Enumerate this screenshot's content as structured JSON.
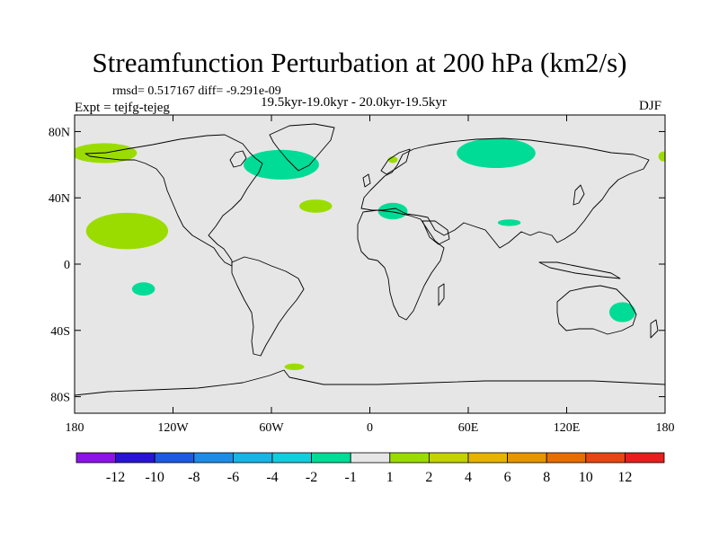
{
  "figure": {
    "title": "Streamfunction Perturbation at 200 hPa (km2/s)",
    "stats_line": "rmsd= 0.517167 diff= -9.291e-09",
    "period": "19.5kyr-19.0kyr - 20.0kyr-19.5kyr",
    "experiment": "Expt = tejfg-tejeg",
    "season": "DJF"
  },
  "colors": {
    "ocean_background": "#e6e6e6",
    "coastline": "#000000",
    "neg_1_2": "#00dc96",
    "pos_1_2": "#9bdc00"
  },
  "chart_data": {
    "type": "filled-contour-map",
    "title": "Streamfunction Perturbation at 200 hPa (km2/s)",
    "lon_range": [
      -180,
      180
    ],
    "lat_range": [
      -90,
      90
    ],
    "x_ticks": [
      {
        "lon": -180,
        "label": "180"
      },
      {
        "lon": -120,
        "label": "120W"
      },
      {
        "lon": -60,
        "label": "60W"
      },
      {
        "lon": 0,
        "label": "0"
      },
      {
        "lon": 60,
        "label": "60E"
      },
      {
        "lon": 120,
        "label": "120E"
      },
      {
        "lon": 180,
        "label": "180"
      }
    ],
    "y_ticks": [
      {
        "lat": 80,
        "label": "80N"
      },
      {
        "lat": 40,
        "label": "40N"
      },
      {
        "lat": 0,
        "label": "0"
      },
      {
        "lat": -40,
        "label": "40S"
      },
      {
        "lat": -80,
        "label": "80S"
      }
    ],
    "colorbar": {
      "colors": [
        "#8c14e6",
        "#2814d2",
        "#1e5ae1",
        "#1e8ce6",
        "#19b4e6",
        "#14cddc",
        "#00dc96",
        "#e6e6e6",
        "#9bdc00",
        "#c3d200",
        "#e6b400",
        "#e69600",
        "#e66e00",
        "#e64614",
        "#e61e1e"
      ],
      "levels": [
        "-12",
        "-10",
        "-8",
        "-6",
        "-4",
        "-2",
        "-1",
        "1",
        "2",
        "4",
        "6",
        "8",
        "10",
        "12"
      ]
    },
    "anomaly_regions": [
      {
        "name": "north-pacific-positive",
        "sign": "positive",
        "range": "1 to 2",
        "lon": -162,
        "lat": 67,
        "rx": 20,
        "ry": 6
      },
      {
        "name": "subtropical-pacific-positive",
        "sign": "positive",
        "range": "1 to 2",
        "lon": -148,
        "lat": 20,
        "rx": 25,
        "ry": 11
      },
      {
        "name": "south-pacific-negative",
        "sign": "negative",
        "range": "-2 to -1",
        "lon": -138,
        "lat": -15,
        "rx": 7,
        "ry": 4
      },
      {
        "name": "north-atlantic-negative",
        "sign": "negative",
        "range": "-2 to -1",
        "lon": -54,
        "lat": 60,
        "rx": 23,
        "ry": 9
      },
      {
        "name": "mid-atlantic-positive",
        "sign": "positive",
        "range": "1 to 2",
        "lon": -33,
        "lat": 35,
        "rx": 10,
        "ry": 4
      },
      {
        "name": "scandinavia-positive",
        "sign": "positive",
        "range": "1 to 2",
        "lon": 14,
        "lat": 63,
        "rx": 3,
        "ry": 2
      },
      {
        "name": "mediterranean-negative",
        "sign": "negative",
        "range": "-2 to -1",
        "lon": 14,
        "lat": 32,
        "rx": 9,
        "ry": 5
      },
      {
        "name": "siberia-negative",
        "sign": "negative",
        "range": "-2 to -1",
        "lon": 77,
        "lat": 67,
        "rx": 24,
        "ry": 9
      },
      {
        "name": "tibet-negative",
        "sign": "negative",
        "range": "-2 to -1",
        "lon": 85,
        "lat": 25,
        "rx": 7,
        "ry": 2
      },
      {
        "name": "bering-positive",
        "sign": "positive",
        "range": "1 to 2",
        "lon": 179,
        "lat": 65,
        "rx": 3,
        "ry": 3
      },
      {
        "name": "east-australia-negative",
        "sign": "negative",
        "range": "-2 to -1",
        "lon": 154,
        "lat": -29,
        "rx": 8,
        "ry": 6
      },
      {
        "name": "southern-ocean-positive",
        "sign": "positive",
        "range": "1 to 2",
        "lon": -46,
        "lat": -62,
        "rx": 6,
        "ry": 2
      }
    ]
  }
}
